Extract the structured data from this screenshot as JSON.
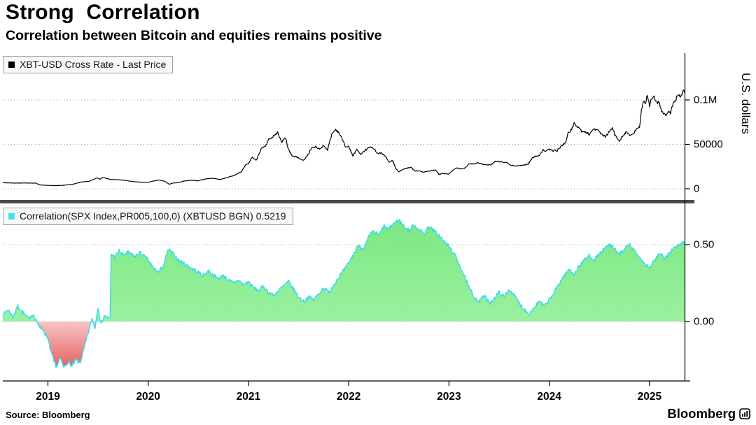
{
  "header": {
    "title": "Strong Correlation",
    "subtitle": "Correlation between Bitcoin and equities remains positive"
  },
  "footer": {
    "source": "Source: Bloomberg",
    "brand": "Bloomberg"
  },
  "colors": {
    "price_line": "#000000",
    "correlation_line": "#35dcec",
    "legend_swatch_corr": "#45e0ef",
    "positive_fill_top": "#79e77f",
    "positive_fill_bottom": "#9bf0a0",
    "negative_fill_top": "#f8c4c4",
    "negative_fill_bottom": "#e25555",
    "gridline": "#a8a8a8",
    "divider": "#4a4a4a",
    "axis": "#000000"
  },
  "xaxis": {
    "range": [
      2018.55,
      2025.35
    ],
    "ticks": [
      2019,
      2020,
      2021,
      2022,
      2023,
      2024,
      2025
    ],
    "labels": [
      "2019",
      "2020",
      "2021",
      "2022",
      "2023",
      "2024",
      "2025"
    ]
  },
  "chart_data": [
    {
      "type": "line",
      "panel": "top",
      "name": "XBT-USD Cross Rate",
      "legend": "XBT-USD Cross Rate - Last Price",
      "ylabel": "U.S. dollars",
      "ylim": [
        0,
        150000
      ],
      "yticks": [
        {
          "value": 0,
          "label": "0"
        },
        {
          "value": 50000,
          "label": "50000"
        },
        {
          "value": 100000,
          "label": "0.1M"
        }
      ],
      "x": [
        2018.55,
        2018.65,
        2018.75,
        2018.85,
        2018.88,
        2018.92,
        2019.0,
        2019.08,
        2019.16,
        2019.25,
        2019.33,
        2019.42,
        2019.49,
        2019.52,
        2019.55,
        2019.62,
        2019.7,
        2019.75,
        2019.83,
        2019.92,
        2020.0,
        2020.04,
        2020.1,
        2020.16,
        2020.21,
        2020.25,
        2020.3,
        2020.36,
        2020.42,
        2020.5,
        2020.58,
        2020.65,
        2020.72,
        2020.8,
        2020.87,
        2020.93,
        2020.97,
        2021.0,
        2021.04,
        2021.08,
        2021.13,
        2021.17,
        2021.21,
        2021.25,
        2021.29,
        2021.33,
        2021.37,
        2021.4,
        2021.44,
        2021.48,
        2021.52,
        2021.55,
        2021.6,
        2021.63,
        2021.67,
        2021.71,
        2021.75,
        2021.79,
        2021.83,
        2021.87,
        2021.9,
        2021.93,
        2021.97,
        2022.0,
        2022.04,
        2022.08,
        2022.12,
        2022.16,
        2022.21,
        2022.25,
        2022.29,
        2022.33,
        2022.37,
        2022.4,
        2022.44,
        2022.47,
        2022.5,
        2022.54,
        2022.58,
        2022.62,
        2022.66,
        2022.7,
        2022.74,
        2022.79,
        2022.83,
        2022.87,
        2022.9,
        2022.93,
        2022.97,
        2023.0,
        2023.04,
        2023.08,
        2023.12,
        2023.16,
        2023.2,
        2023.25,
        2023.29,
        2023.33,
        2023.37,
        2023.42,
        2023.46,
        2023.5,
        2023.54,
        2023.58,
        2023.62,
        2023.67,
        2023.71,
        2023.75,
        2023.79,
        2023.83,
        2023.87,
        2023.9,
        2023.94,
        2023.97,
        2024.0,
        2024.04,
        2024.08,
        2024.12,
        2024.16,
        2024.19,
        2024.23,
        2024.25,
        2024.29,
        2024.33,
        2024.37,
        2024.4,
        2024.44,
        2024.48,
        2024.52,
        2024.56,
        2024.6,
        2024.63,
        2024.66,
        2024.7,
        2024.73,
        2024.77,
        2024.81,
        2024.85,
        2024.87,
        2024.9,
        2024.92,
        2024.94,
        2024.96,
        2024.98,
        2025.0,
        2025.02,
        2025.04,
        2025.06,
        2025.08,
        2025.1,
        2025.12,
        2025.15,
        2025.17,
        2025.19,
        2025.21,
        2025.23,
        2025.25,
        2025.28,
        2025.31,
        2025.33,
        2025.35
      ],
      "y": [
        6800,
        6400,
        6500,
        6400,
        6300,
        4300,
        3800,
        3500,
        3900,
        5100,
        7500,
        8600,
        12300,
        10800,
        12900,
        10500,
        10200,
        9800,
        8300,
        7300,
        7200,
        8300,
        9800,
        8800,
        5000,
        6500,
        6900,
        8800,
        9500,
        9100,
        11200,
        11700,
        10300,
        13000,
        15500,
        19200,
        26500,
        29000,
        35500,
        32000,
        46000,
        48000,
        57000,
        58800,
        63500,
        53000,
        57000,
        44000,
        36500,
        35800,
        33500,
        31800,
        39500,
        46000,
        47100,
        44600,
        48800,
        43800,
        61300,
        66900,
        63600,
        57200,
        46900,
        47700,
        36900,
        44400,
        37700,
        43200,
        46800,
        45500,
        39700,
        40000,
        36000,
        29800,
        31700,
        22500,
        19000,
        21600,
        23300,
        24400,
        20000,
        20100,
        18800,
        19600,
        20400,
        21000,
        16000,
        17200,
        16800,
        16600,
        21100,
        23200,
        22100,
        23500,
        28300,
        28000,
        29300,
        27600,
        26800,
        27200,
        30500,
        30600,
        29900,
        29200,
        26000,
        26100,
        25900,
        26800,
        27900,
        34600,
        36700,
        37800,
        43800,
        42300,
        44200,
        42900,
        43100,
        48000,
        51800,
        62400,
        68500,
        73100,
        69400,
        64000,
        63800,
        61000,
        67500,
        66000,
        61800,
        58000,
        64600,
        68200,
        59400,
        54000,
        59500,
        64100,
        59400,
        62900,
        67800,
        69400,
        88000,
        97000,
        95800,
        106100,
        94400,
        102100,
        104700,
        97700,
        96600,
        98000,
        86000,
        84400,
        82100,
        86900,
        84400,
        94300,
        97500,
        105000,
        103800,
        109500,
        108000
      ]
    },
    {
      "type": "area",
      "panel": "bottom",
      "name": "Correlation(SPX Index,PR005,100,0) (XBTUSD BGN)",
      "legend": "Correlation(SPX Index,PR005,100,0) (XBTUSD BGN) 0.5219",
      "last_value": 0.5219,
      "ylim": [
        -0.4,
        0.75
      ],
      "yticks": [
        {
          "value": 0.0,
          "label": "0.00"
        },
        {
          "value": 0.5,
          "label": "0.50"
        }
      ],
      "x": [
        2018.55,
        2018.6,
        2018.65,
        2018.7,
        2018.75,
        2018.8,
        2018.85,
        2018.9,
        2018.95,
        2019.0,
        2019.04,
        2019.08,
        2019.12,
        2019.16,
        2019.2,
        2019.24,
        2019.28,
        2019.32,
        2019.36,
        2019.4,
        2019.44,
        2019.47,
        2019.5,
        2019.53,
        2019.56,
        2019.6,
        2019.62,
        2019.63,
        2019.67,
        2019.71,
        2019.75,
        2019.79,
        2019.83,
        2019.87,
        2019.91,
        2019.95,
        2020.0,
        2020.05,
        2020.1,
        2020.15,
        2020.2,
        2020.25,
        2020.3,
        2020.35,
        2020.4,
        2020.45,
        2020.5,
        2020.55,
        2020.6,
        2020.65,
        2020.7,
        2020.75,
        2020.8,
        2020.85,
        2020.9,
        2020.95,
        2021.0,
        2021.05,
        2021.1,
        2021.15,
        2021.2,
        2021.25,
        2021.3,
        2021.35,
        2021.4,
        2021.45,
        2021.5,
        2021.55,
        2021.6,
        2021.65,
        2021.7,
        2021.75,
        2021.8,
        2021.85,
        2021.9,
        2021.95,
        2022.0,
        2022.05,
        2022.1,
        2022.15,
        2022.2,
        2022.25,
        2022.3,
        2022.35,
        2022.4,
        2022.45,
        2022.5,
        2022.55,
        2022.6,
        2022.65,
        2022.7,
        2022.75,
        2022.8,
        2022.85,
        2022.9,
        2022.95,
        2023.0,
        2023.05,
        2023.1,
        2023.15,
        2023.2,
        2023.25,
        2023.3,
        2023.35,
        2023.4,
        2023.45,
        2023.5,
        2023.55,
        2023.6,
        2023.65,
        2023.7,
        2023.75,
        2023.8,
        2023.85,
        2023.9,
        2023.95,
        2024.0,
        2024.05,
        2024.1,
        2024.15,
        2024.2,
        2024.25,
        2024.3,
        2024.35,
        2024.4,
        2024.45,
        2024.5,
        2024.55,
        2024.6,
        2024.65,
        2024.7,
        2024.75,
        2024.8,
        2024.85,
        2024.9,
        2024.95,
        2025.0,
        2025.05,
        2025.1,
        2025.15,
        2025.2,
        2025.25,
        2025.3,
        2025.35
      ],
      "y": [
        0.04,
        0.08,
        0.03,
        0.1,
        0.06,
        0.02,
        0.05,
        -0.02,
        -0.05,
        -0.12,
        -0.22,
        -0.3,
        -0.24,
        -0.3,
        -0.26,
        -0.29,
        -0.25,
        -0.27,
        -0.18,
        -0.08,
        0.02,
        -0.04,
        0.1,
        -0.02,
        0.04,
        0.02,
        0.02,
        0.44,
        0.42,
        0.46,
        0.43,
        0.45,
        0.44,
        0.42,
        0.45,
        0.43,
        0.4,
        0.35,
        0.32,
        0.36,
        0.47,
        0.44,
        0.4,
        0.38,
        0.36,
        0.34,
        0.32,
        0.3,
        0.33,
        0.3,
        0.28,
        0.3,
        0.27,
        0.25,
        0.27,
        0.24,
        0.26,
        0.22,
        0.2,
        0.23,
        0.19,
        0.17,
        0.2,
        0.23,
        0.26,
        0.21,
        0.16,
        0.13,
        0.16,
        0.14,
        0.18,
        0.22,
        0.19,
        0.24,
        0.29,
        0.33,
        0.38,
        0.44,
        0.5,
        0.47,
        0.55,
        0.59,
        0.56,
        0.62,
        0.6,
        0.64,
        0.66,
        0.62,
        0.59,
        0.63,
        0.6,
        0.57,
        0.62,
        0.59,
        0.56,
        0.52,
        0.49,
        0.44,
        0.38,
        0.3,
        0.22,
        0.16,
        0.13,
        0.17,
        0.12,
        0.15,
        0.19,
        0.16,
        0.21,
        0.17,
        0.12,
        0.08,
        0.05,
        0.09,
        0.13,
        0.1,
        0.14,
        0.19,
        0.25,
        0.3,
        0.34,
        0.31,
        0.36,
        0.4,
        0.43,
        0.4,
        0.44,
        0.47,
        0.5,
        0.47,
        0.44,
        0.47,
        0.5,
        0.46,
        0.42,
        0.38,
        0.35,
        0.4,
        0.44,
        0.41,
        0.45,
        0.48,
        0.5,
        0.52
      ]
    }
  ]
}
